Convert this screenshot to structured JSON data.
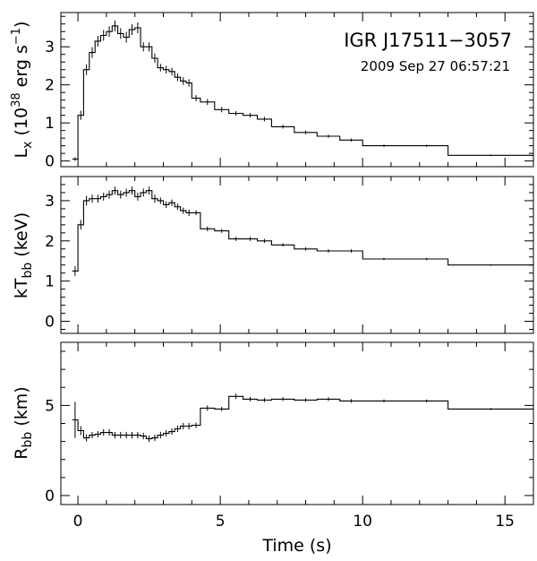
{
  "chart_data": {
    "type": "line",
    "title": "IGR J17511−3057",
    "subtitle": "2009 Sep 27 06:57:21",
    "xlabel": "Time (s)",
    "xlim": [
      -0.6,
      16
    ],
    "x_ticks": [
      "0",
      "5",
      "10",
      "15"
    ],
    "x_tick_values": [
      0,
      5,
      10,
      15
    ],
    "grid": false,
    "panels": [
      {
        "id": "lx",
        "ylabel": "L_x (10^38 erg s^-1)",
        "ylim": [
          -0.15,
          3.9
        ],
        "y_ticks": [
          "0",
          "1",
          "2",
          "3"
        ],
        "y_tick_values": [
          0,
          1,
          2,
          3
        ],
        "series": [
          {
            "edges": [
              -0.2,
              0.0,
              0.2,
              0.4,
              0.6,
              0.8,
              1.0,
              1.2,
              1.4,
              1.6,
              1.8,
              2.0,
              2.2,
              2.4,
              2.6,
              2.8,
              3.0,
              3.2,
              3.4,
              3.6,
              3.8,
              4.0,
              4.3,
              4.8,
              5.3,
              5.8,
              6.3,
              6.8,
              7.6,
              8.4,
              9.2,
              10.0,
              11.5,
              13.0,
              16.0
            ],
            "values": [
              0.05,
              1.2,
              2.4,
              2.85,
              3.15,
              3.3,
              3.4,
              3.55,
              3.35,
              3.25,
              3.45,
              3.5,
              3.0,
              3.0,
              2.7,
              2.45,
              2.4,
              2.35,
              2.2,
              2.1,
              2.05,
              1.65,
              1.55,
              1.35,
              1.25,
              1.2,
              1.1,
              0.9,
              0.75,
              0.65,
              0.55,
              0.4,
              0.4,
              0.15
            ],
            "errors": [
              0.05,
              0.12,
              0.14,
              0.14,
              0.14,
              0.14,
              0.14,
              0.14,
              0.14,
              0.14,
              0.14,
              0.14,
              0.12,
              0.12,
              0.12,
              0.1,
              0.1,
              0.1,
              0.1,
              0.1,
              0.1,
              0.08,
              0.08,
              0.07,
              0.06,
              0.06,
              0.06,
              0.05,
              0.05,
              0.04,
              0.04,
              0.03,
              0.03,
              0.02
            ]
          }
        ]
      },
      {
        "id": "ktbb",
        "ylabel": "kT_bb (keV)",
        "ylim": [
          -0.3,
          3.6
        ],
        "y_ticks": [
          "0",
          "1",
          "2",
          "3"
        ],
        "y_tick_values": [
          0,
          1,
          2,
          3
        ],
        "series": [
          {
            "edges": [
              -0.2,
              0.0,
              0.2,
              0.4,
              0.6,
              0.8,
              1.0,
              1.2,
              1.4,
              1.6,
              1.8,
              2.0,
              2.2,
              2.4,
              2.6,
              2.8,
              3.0,
              3.2,
              3.4,
              3.6,
              3.8,
              4.0,
              4.3,
              4.8,
              5.3,
              5.8,
              6.3,
              6.8,
              7.6,
              8.4,
              9.2,
              10.0,
              11.5,
              13.0,
              16.0
            ],
            "values": [
              1.25,
              2.4,
              3.0,
              3.05,
              3.05,
              3.1,
              3.15,
              3.25,
              3.15,
              3.2,
              3.25,
              3.1,
              3.2,
              3.25,
              3.05,
              3.0,
              2.9,
              2.95,
              2.85,
              2.75,
              2.7,
              2.7,
              2.3,
              2.25,
              2.05,
              2.05,
              2.0,
              1.9,
              1.8,
              1.75,
              1.75,
              1.55,
              1.55,
              1.4
            ],
            "errors": [
              0.12,
              0.12,
              0.12,
              0.1,
              0.1,
              0.1,
              0.1,
              0.1,
              0.1,
              0.1,
              0.1,
              0.1,
              0.1,
              0.1,
              0.1,
              0.08,
              0.08,
              0.08,
              0.08,
              0.08,
              0.08,
              0.06,
              0.06,
              0.05,
              0.05,
              0.05,
              0.05,
              0.04,
              0.04,
              0.04,
              0.04,
              0.03,
              0.03,
              0.02
            ]
          }
        ]
      },
      {
        "id": "rbb",
        "ylabel": "R_bb (km)",
        "ylim": [
          -0.5,
          8.5
        ],
        "y_ticks": [
          "0",
          "5"
        ],
        "y_tick_values": [
          0,
          5
        ],
        "series": [
          {
            "edges": [
              -0.2,
              0.0,
              0.2,
              0.4,
              0.6,
              0.8,
              1.0,
              1.2,
              1.4,
              1.6,
              1.8,
              2.0,
              2.2,
              2.4,
              2.6,
              2.8,
              3.0,
              3.2,
              3.4,
              3.6,
              3.8,
              4.0,
              4.3,
              4.8,
              5.3,
              5.8,
              6.3,
              6.8,
              7.6,
              8.4,
              9.2,
              10.0,
              11.5,
              13.0,
              16.0
            ],
            "values": [
              4.2,
              3.6,
              3.2,
              3.35,
              3.4,
              3.5,
              3.5,
              3.35,
              3.35,
              3.35,
              3.35,
              3.35,
              3.3,
              3.15,
              3.2,
              3.35,
              3.45,
              3.55,
              3.7,
              3.85,
              3.85,
              3.9,
              4.85,
              4.8,
              5.5,
              5.35,
              5.3,
              5.35,
              5.3,
              5.35,
              5.25,
              5.25,
              5.25,
              4.8
            ],
            "errors": [
              1.0,
              0.25,
              0.2,
              0.18,
              0.18,
              0.18,
              0.18,
              0.18,
              0.18,
              0.18,
              0.18,
              0.18,
              0.18,
              0.18,
              0.18,
              0.18,
              0.18,
              0.18,
              0.18,
              0.18,
              0.18,
              0.15,
              0.15,
              0.12,
              0.15,
              0.12,
              0.12,
              0.1,
              0.1,
              0.1,
              0.1,
              0.08,
              0.08,
              0.06
            ]
          }
        ]
      }
    ]
  }
}
